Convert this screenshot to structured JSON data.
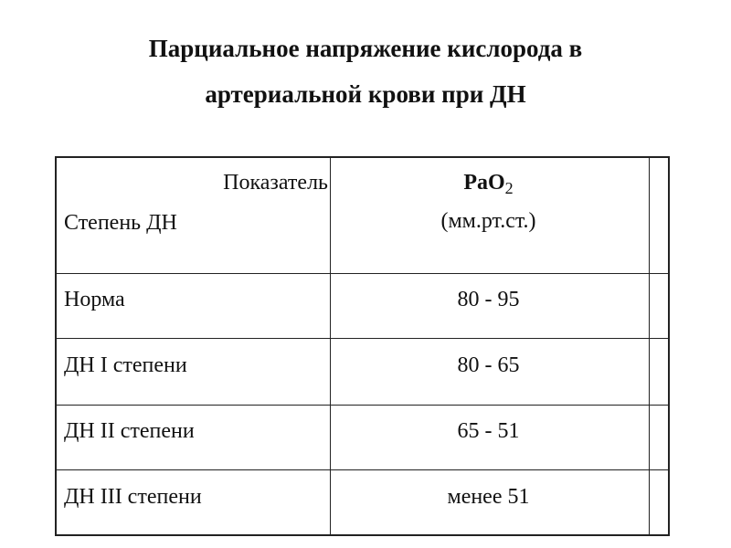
{
  "title": {
    "line1": "Парциальное напряжение кислорода в",
    "line2": "артериальной крови при ДН"
  },
  "table": {
    "header": {
      "indicator": "Показатель",
      "degree": "Степень ДН",
      "param_main": "PaO",
      "param_sub": "2",
      "param_unit": "(мм.рт.ст.)"
    },
    "rows": [
      {
        "label": "Норма",
        "value": "80 - 95"
      },
      {
        "label": "ДН I степени",
        "value": "80 - 65"
      },
      {
        "label": "ДН II степени",
        "value": "65 - 51"
      },
      {
        "label": "ДН III степени",
        "value": "менее 51"
      }
    ]
  }
}
